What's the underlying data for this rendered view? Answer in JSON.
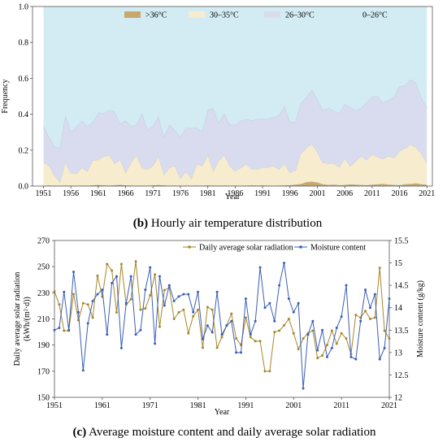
{
  "figure_b": {
    "caption_letter": "(b)",
    "caption_text": " Hourly air temperature distribution"
  },
  "figure_c": {
    "caption_letter": "(c)",
    "caption_text": " Average moisture content and daily average solar radiation"
  },
  "chart_data": [
    {
      "type": "area",
      "stacked": true,
      "xlabel": "Year",
      "ylabel": "Frequency",
      "xlim": [
        1949,
        2022
      ],
      "ylim": [
        0,
        1.0
      ],
      "xticks": [
        1951,
        1956,
        1961,
        1966,
        1971,
        1976,
        1981,
        1986,
        1991,
        1996,
        2001,
        2006,
        2011,
        2016,
        2021
      ],
      "yticks": [
        0,
        0.2,
        0.4,
        0.6,
        0.8,
        1.0
      ],
      "ytick_labels": [
        "0.0",
        "0.2",
        "0.4",
        "0.6",
        "0.8",
        "1.0"
      ],
      "legend_position": "top",
      "grid": false,
      "x": [
        1951,
        1952,
        1953,
        1954,
        1955,
        1956,
        1957,
        1958,
        1959,
        1960,
        1961,
        1962,
        1963,
        1964,
        1965,
        1966,
        1967,
        1968,
        1969,
        1970,
        1971,
        1972,
        1973,
        1974,
        1975,
        1976,
        1977,
        1978,
        1979,
        1980,
        1981,
        1982,
        1983,
        1984,
        1985,
        1986,
        1987,
        1988,
        1989,
        1990,
        1991,
        1992,
        1993,
        1994,
        1995,
        1996,
        1997,
        1998,
        1999,
        2000,
        2001,
        2002,
        2003,
        2004,
        2005,
        2006,
        2007,
        2008,
        2009,
        2010,
        2011,
        2012,
        2013,
        2014,
        2015,
        2016,
        2017,
        2018,
        2019,
        2020,
        2021
      ],
      "series": [
        {
          "name": ">36°C",
          "color": "#c9a86b",
          "values": [
            0.002,
            0.003,
            0.002,
            0.001,
            0.003,
            0.002,
            0.001,
            0.003,
            0.002,
            0.004,
            0.006,
            0.004,
            0.003,
            0.005,
            0.007,
            0.004,
            0.003,
            0.002,
            0.003,
            0.002,
            0.004,
            0.006,
            0.004,
            0.002,
            0.003,
            0.002,
            0.003,
            0.002,
            0.003,
            0.002,
            0.004,
            0.003,
            0.002,
            0.003,
            0.002,
            0.003,
            0.002,
            0.003,
            0.004,
            0.003,
            0.004,
            0.003,
            0.002,
            0.003,
            0.004,
            0.005,
            0.008,
            0.012,
            0.022,
            0.025,
            0.02,
            0.01,
            0.006,
            0.008,
            0.005,
            0.006,
            0.01,
            0.008,
            0.006,
            0.005,
            0.008,
            0.01,
            0.012,
            0.008,
            0.006,
            0.005,
            0.01,
            0.012,
            0.015,
            0.01,
            0.008
          ]
        },
        {
          "name": "30–35°C",
          "color": "#f7edce",
          "values": [
            0.13,
            0.11,
            0.06,
            0.02,
            0.13,
            0.07,
            0.07,
            0.1,
            0.08,
            0.14,
            0.14,
            0.16,
            0.17,
            0.12,
            0.14,
            0.07,
            0.13,
            0.17,
            0.1,
            0.09,
            0.11,
            0.16,
            0.06,
            0.1,
            0.11,
            0.04,
            0.08,
            0.04,
            0.12,
            0.11,
            0.17,
            0.08,
            0.14,
            0.17,
            0.11,
            0.08,
            0.1,
            0.12,
            0.09,
            0.09,
            0.1,
            0.1,
            0.11,
            0.09,
            0.12,
            0.07,
            0.08,
            0.17,
            0.19,
            0.21,
            0.17,
            0.12,
            0.12,
            0.12,
            0.1,
            0.15,
            0.1,
            0.13,
            0.16,
            0.14,
            0.17,
            0.15,
            0.14,
            0.16,
            0.15,
            0.19,
            0.2,
            0.22,
            0.2,
            0.17,
            0.12
          ]
        },
        {
          "name": "26–30°C",
          "color": "#d9dcee",
          "values": [
            0.2,
            0.16,
            0.16,
            0.19,
            0.26,
            0.23,
            0.26,
            0.26,
            0.25,
            0.21,
            0.26,
            0.24,
            0.25,
            0.29,
            0.2,
            0.29,
            0.2,
            0.17,
            0.3,
            0.22,
            0.22,
            0.22,
            0.21,
            0.24,
            0.2,
            0.23,
            0.24,
            0.28,
            0.2,
            0.19,
            0.25,
            0.35,
            0.21,
            0.23,
            0.23,
            0.26,
            0.26,
            0.25,
            0.27,
            0.28,
            0.27,
            0.27,
            0.27,
            0.3,
            0.32,
            0.28,
            0.27,
            0.28,
            0.28,
            0.3,
            0.29,
            0.29,
            0.31,
            0.29,
            0.3,
            0.3,
            0.33,
            0.28,
            0.27,
            0.32,
            0.32,
            0.34,
            0.31,
            0.31,
            0.34,
            0.36,
            0.35,
            0.36,
            0.36,
            0.31,
            0.31
          ]
        },
        {
          "name": "0–26°C",
          "color": "#d3ecf3",
          "values": [
            0.668,
            0.727,
            0.778,
            0.789,
            0.607,
            0.698,
            0.669,
            0.637,
            0.668,
            0.646,
            0.594,
            0.596,
            0.577,
            0.585,
            0.653,
            0.636,
            0.667,
            0.658,
            0.597,
            0.688,
            0.666,
            0.614,
            0.726,
            0.658,
            0.687,
            0.728,
            0.677,
            0.678,
            0.677,
            0.698,
            0.576,
            0.567,
            0.648,
            0.597,
            0.658,
            0.657,
            0.638,
            0.627,
            0.636,
            0.627,
            0.626,
            0.627,
            0.618,
            0.607,
            0.556,
            0.645,
            0.642,
            0.538,
            0.508,
            0.465,
            0.52,
            0.58,
            0.564,
            0.582,
            0.595,
            0.544,
            0.56,
            0.582,
            0.564,
            0.535,
            0.502,
            0.5,
            0.538,
            0.522,
            0.504,
            0.445,
            0.44,
            0.408,
            0.425,
            0.51,
            0.562
          ]
        }
      ]
    },
    {
      "type": "line",
      "xlabel": "Year",
      "ylabel_left_line1": "Daily average solar radiation",
      "ylabel_left_line2": "(kWh/(m²·d))",
      "ylabel_right": "Moisture content (g/kg)",
      "xlim": [
        1951,
        2021
      ],
      "ylim_left": [
        150,
        270
      ],
      "ylim_right": [
        12,
        15.5
      ],
      "xticks": [
        1951,
        1961,
        1971,
        1981,
        1991,
        2001,
        2011,
        2021
      ],
      "yticks_left": [
        150,
        170,
        190,
        210,
        230,
        250,
        270
      ],
      "yticks_right": [
        12,
        12.5,
        13,
        13.5,
        14,
        14.5,
        15,
        15.5
      ],
      "legend_position": "top-right",
      "grid": false,
      "x": [
        1951,
        1952,
        1953,
        1954,
        1955,
        1956,
        1957,
        1958,
        1959,
        1960,
        1961,
        1962,
        1963,
        1964,
        1965,
        1966,
        1967,
        1968,
        1969,
        1970,
        1971,
        1972,
        1973,
        1974,
        1975,
        1976,
        1977,
        1978,
        1979,
        1980,
        1981,
        1982,
        1983,
        1984,
        1985,
        1986,
        1987,
        1988,
        1989,
        1990,
        1991,
        1992,
        1993,
        1994,
        1995,
        1996,
        1997,
        1998,
        1999,
        2000,
        2001,
        2002,
        2003,
        2004,
        2005,
        2006,
        2007,
        2008,
        2009,
        2010,
        2011,
        2012,
        2013,
        2014,
        2015,
        2016,
        2017,
        2018,
        2019,
        2020,
        2021
      ],
      "series": [
        {
          "name": "Daily average solar radiation",
          "axis": "left",
          "color": "#a8862a",
          "values": [
            231,
            221,
            201,
            201,
            229,
            209,
            222,
            221,
            211,
            243,
            227,
            252,
            247,
            215,
            252,
            221,
            225,
            254,
            217,
            218,
            228,
            244,
            204,
            232,
            234,
            210,
            215,
            217,
            199,
            212,
            217,
            188,
            219,
            217,
            188,
            196,
            205,
            214,
            195,
            190,
            211,
            196,
            193,
            193,
            170,
            170,
            200,
            201,
            205,
            210,
            199,
            187,
            195,
            199,
            201,
            180,
            182,
            190,
            201,
            191,
            199,
            195,
            183,
            213,
            211,
            216,
            210,
            211,
            249,
            201,
            195
          ]
        },
        {
          "name": "Moisture content",
          "axis": "right",
          "color": "#3a5fb5",
          "values": [
            13.5,
            13.55,
            14.35,
            13.5,
            14.8,
            13.9,
            12.6,
            13.65,
            14.15,
            14.3,
            14.4,
            13.4,
            14.55,
            14.7,
            13.1,
            14.1,
            14.7,
            13.4,
            13.5,
            14.4,
            14.9,
            13.2,
            14.7,
            14.05,
            14.5,
            14.15,
            14.25,
            14.3,
            14.3,
            13.9,
            14.35,
            13.3,
            13.6,
            13.45,
            14.35,
            13.4,
            13.6,
            13.7,
            13.0,
            13.0,
            14.2,
            13.4,
            13.7,
            14.9,
            14.0,
            14.1,
            13.7,
            14.5,
            15.0,
            14.2,
            13.9,
            14.1,
            12.2,
            13.4,
            13.7,
            13.05,
            13.5,
            12.9,
            13.1,
            13.55,
            13.8,
            14.5,
            12.9,
            12.85,
            13.7,
            14.4,
            14.0,
            14.3,
            12.85,
            13.1,
            14.2
          ]
        }
      ]
    }
  ]
}
